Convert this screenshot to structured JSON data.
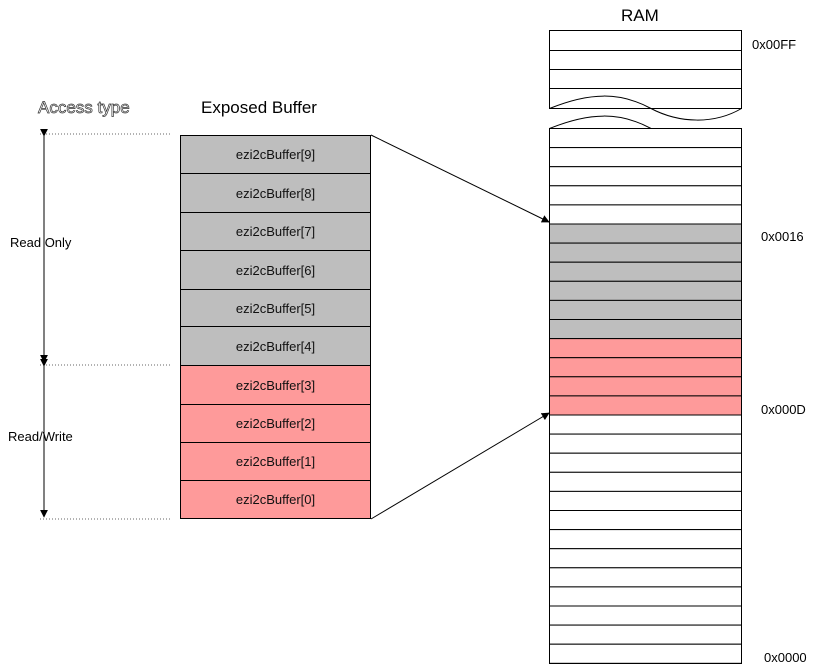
{
  "headers": {
    "access_type": "Access type",
    "exposed_buffer": "Exposed Buffer",
    "ram": "RAM"
  },
  "access_groups": {
    "read_only": "Read Only",
    "read_write": "Read/Write"
  },
  "buffer": [
    {
      "label": "ezi2cBuffer[9]",
      "access": "read_only"
    },
    {
      "label": "ezi2cBuffer[8]",
      "access": "read_only"
    },
    {
      "label": "ezi2cBuffer[7]",
      "access": "read_only"
    },
    {
      "label": "ezi2cBuffer[6]",
      "access": "read_only"
    },
    {
      "label": "ezi2cBuffer[5]",
      "access": "read_only"
    },
    {
      "label": "ezi2cBuffer[4]",
      "access": "read_only"
    },
    {
      "label": "ezi2cBuffer[3]",
      "access": "read_write"
    },
    {
      "label": "ezi2cBuffer[2]",
      "access": "read_write"
    },
    {
      "label": "ezi2cBuffer[1]",
      "access": "read_write"
    },
    {
      "label": "ezi2cBuffer[0]",
      "access": "read_write"
    }
  ],
  "ram_addresses": {
    "top": "0x00FF",
    "buffer_end": "0x0016",
    "buffer_start": "0x000D",
    "bottom": "0x0000"
  },
  "colors": {
    "read_only": "#bebebe",
    "read_write": "#fe9a9a"
  }
}
